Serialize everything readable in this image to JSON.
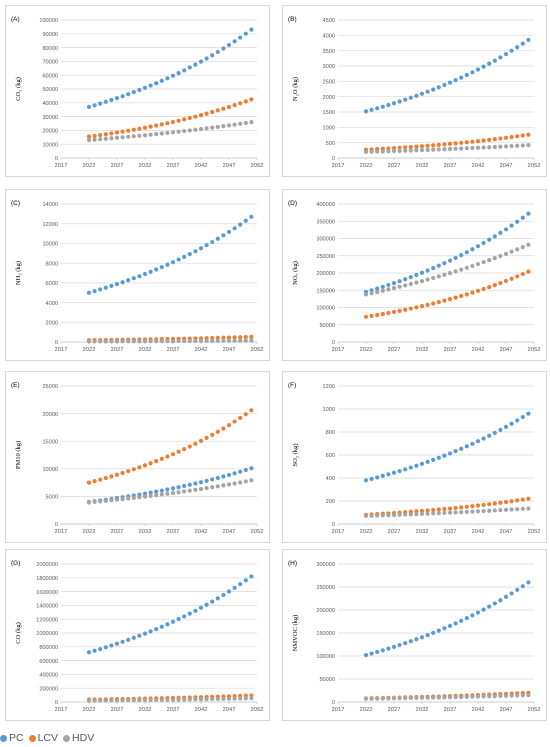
{
  "colors": {
    "PC": "#5b9bd5",
    "LCV": "#ed7d31",
    "HDV": "#a5a5a5",
    "grid": "#d9d9d9",
    "axis_text": "#595959"
  },
  "legend": [
    {
      "series": "PC",
      "label": "PC"
    },
    {
      "series": "LCV",
      "label": "LCV"
    },
    {
      "series": "HDV",
      "label": "HDV"
    }
  ],
  "chart_data": [
    {
      "type": "scatter",
      "panel_label": "(A)",
      "ylabel": "CO₂ (kg)",
      "x_ticks": [
        "2017",
        "2022",
        "2027",
        "2032",
        "2037",
        "2042",
        "2047",
        "2052"
      ],
      "xlim": [
        2017,
        2052
      ],
      "y_ticks": [
        "0",
        "10000",
        "20000",
        "30000",
        "40000",
        "50000",
        "60000",
        "70000",
        "80000",
        "90000",
        "100000"
      ],
      "ylim": [
        0,
        100000
      ],
      "x_start": 2022,
      "x_end": 2051,
      "grid": "horizontal",
      "series": [
        {
          "name": "PC",
          "start": 37000,
          "end": 93000
        },
        {
          "name": "LCV",
          "start": 15500,
          "end": 42500
        },
        {
          "name": "HDV",
          "start": 13000,
          "end": 26000
        }
      ]
    },
    {
      "type": "scatter",
      "panel_label": "(B)",
      "ylabel": "N₂O (kg)",
      "x_ticks": [
        "2017",
        "2022",
        "2027",
        "2032",
        "2037",
        "2042",
        "2047",
        "2052"
      ],
      "xlim": [
        2017,
        2052
      ],
      "y_ticks": [
        "0",
        "500",
        "1000",
        "1500",
        "2000",
        "2500",
        "3000",
        "3500",
        "4000",
        "4500"
      ],
      "ylim": [
        0,
        4500
      ],
      "x_start": 2022,
      "x_end": 2051,
      "grid": "horizontal",
      "series": [
        {
          "name": "PC",
          "start": 1520,
          "end": 3850
        },
        {
          "name": "LCV",
          "start": 270,
          "end": 760
        },
        {
          "name": "HDV",
          "start": 200,
          "end": 420
        }
      ]
    },
    {
      "type": "scatter",
      "panel_label": "(C)",
      "ylabel": "NH₃ (kg)",
      "x_ticks": [
        "2017",
        "2022",
        "2027",
        "2032",
        "2037",
        "2042",
        "2047",
        "2052"
      ],
      "xlim": [
        2017,
        2052
      ],
      "y_ticks": [
        "0",
        "2000",
        "4000",
        "6000",
        "8000",
        "10000",
        "12000",
        "14000"
      ],
      "ylim": [
        0,
        14000
      ],
      "x_start": 2022,
      "x_end": 2051,
      "grid": "horizontal",
      "series": [
        {
          "name": "PC",
          "start": 5000,
          "end": 12700
        },
        {
          "name": "LCV",
          "start": 180,
          "end": 520
        },
        {
          "name": "HDV",
          "start": 60,
          "end": 140
        }
      ]
    },
    {
      "type": "scatter",
      "panel_label": "(D)",
      "ylabel": "NOₓ (kg)",
      "x_ticks": [
        "2017",
        "2022",
        "2027",
        "2032",
        "2037",
        "2042",
        "2047",
        "2052"
      ],
      "xlim": [
        2017,
        2052
      ],
      "y_ticks": [
        "0",
        "50000",
        "100000",
        "150000",
        "200000",
        "250000",
        "300000",
        "350000",
        "400000"
      ],
      "ylim": [
        0,
        400000
      ],
      "x_start": 2022,
      "x_end": 2051,
      "grid": "horizontal",
      "series": [
        {
          "name": "PC",
          "start": 145000,
          "end": 372000
        },
        {
          "name": "LCV",
          "start": 73000,
          "end": 204000
        },
        {
          "name": "HDV",
          "start": 138000,
          "end": 282000
        }
      ]
    },
    {
      "type": "scatter",
      "panel_label": "(E)",
      "ylabel": "PM10 (kg)",
      "x_ticks": [
        "2017",
        "2022",
        "2027",
        "2032",
        "2037",
        "2042",
        "2047",
        "2052"
      ],
      "xlim": [
        2017,
        2052
      ],
      "y_ticks": [
        "0",
        "5000",
        "10000",
        "15000",
        "20000",
        "25000"
      ],
      "ylim": [
        0,
        25000
      ],
      "x_start": 2022,
      "x_end": 2051,
      "grid": "horizontal",
      "series": [
        {
          "name": "PC",
          "start": 4000,
          "end": 10100
        },
        {
          "name": "LCV",
          "start": 7500,
          "end": 20600
        },
        {
          "name": "HDV",
          "start": 3900,
          "end": 7900
        }
      ]
    },
    {
      "type": "scatter",
      "panel_label": "(F)",
      "ylabel": "SO₂ (kg)",
      "x_ticks": [
        "2017",
        "2022",
        "2027",
        "2032",
        "2037",
        "2042",
        "2047",
        "2052"
      ],
      "xlim": [
        2017,
        2052
      ],
      "y_ticks": [
        "0",
        "200",
        "400",
        "600",
        "800",
        "1000",
        "1200"
      ],
      "ylim": [
        0,
        1200
      ],
      "x_start": 2022,
      "x_end": 2051,
      "grid": "horizontal",
      "series": [
        {
          "name": "PC",
          "start": 380,
          "end": 960
        },
        {
          "name": "LCV",
          "start": 80,
          "end": 220
        },
        {
          "name": "HDV",
          "start": 70,
          "end": 135
        }
      ]
    },
    {
      "type": "scatter",
      "panel_label": "(G)",
      "ylabel": "CO (kg)",
      "x_ticks": [
        "2017",
        "2022",
        "2027",
        "2032",
        "2037",
        "2042",
        "2047",
        "2052"
      ],
      "xlim": [
        2017,
        2052
      ],
      "y_ticks": [
        "0",
        "200000",
        "400000",
        "600000",
        "800000",
        "1000000",
        "1200000",
        "1400000",
        "1600000",
        "1800000",
        "2000000"
      ],
      "ylim": [
        0,
        2000000
      ],
      "x_start": 2022,
      "x_end": 2051,
      "grid": "horizontal",
      "series": [
        {
          "name": "PC",
          "start": 720000,
          "end": 1820000
        },
        {
          "name": "LCV",
          "start": 35000,
          "end": 95000
        },
        {
          "name": "HDV",
          "start": 20000,
          "end": 55000
        }
      ]
    },
    {
      "type": "scatter",
      "panel_label": "(H)",
      "ylabel": "NMVOC (kg)",
      "x_ticks": [
        "2017",
        "2022",
        "2027",
        "2032",
        "2037",
        "2042",
        "2047",
        "2052"
      ],
      "xlim": [
        2017,
        2052
      ],
      "y_ticks": [
        "0",
        "50000",
        "100000",
        "150000",
        "200000",
        "250000",
        "300000"
      ],
      "ylim": [
        0,
        300000
      ],
      "x_start": 2022,
      "x_end": 2051,
      "grid": "horizontal",
      "series": [
        {
          "name": "PC",
          "start": 102000,
          "end": 260000
        },
        {
          "name": "LCV",
          "start": 8000,
          "end": 20000
        },
        {
          "name": "HDV",
          "start": 7000,
          "end": 15000
        }
      ]
    }
  ]
}
